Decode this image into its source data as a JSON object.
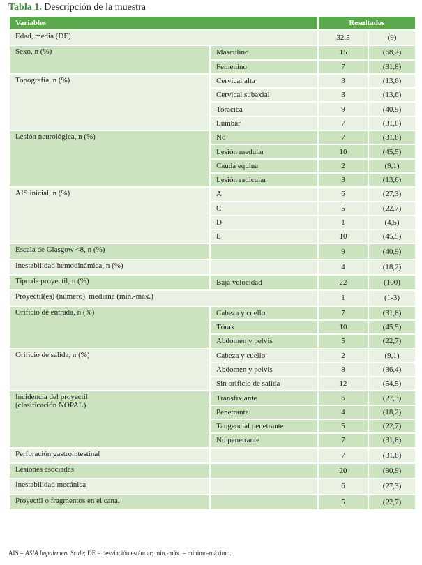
{
  "title": {
    "label": "Tabla 1.",
    "text": " Descripción de la muestra"
  },
  "header": {
    "variables": "Variables",
    "results": "Resultados"
  },
  "groups": [
    {
      "var": "Edad, media (DE)",
      "span": true,
      "rows": [
        [
          "",
          "32.5",
          "(9)"
        ]
      ]
    },
    {
      "var": "Sexo, n (%)",
      "rows": [
        [
          "Masculino",
          "15",
          "(68,2)"
        ],
        [
          "Femenino",
          "7",
          "(31,8)"
        ]
      ]
    },
    {
      "var": "Topografía, n (%)",
      "rows": [
        [
          "Cervical alta",
          "3",
          "(13,6)"
        ],
        [
          "Cervical subaxial",
          "3",
          "(13,6)"
        ],
        [
          "Torácica",
          "9",
          "(40,9)"
        ],
        [
          "Lumbar",
          "7",
          "(31,8)"
        ]
      ]
    },
    {
      "var": "Lesión neurológica, n (%)",
      "rows": [
        [
          "No",
          "7",
          "(31,8)"
        ],
        [
          "Lesión medular",
          "10",
          "(45,5)"
        ],
        [
          "Cauda equina",
          "2",
          "(9,1)"
        ],
        [
          "Lesión radicular",
          "3",
          "(13,6)"
        ]
      ]
    },
    {
      "var": "AIS inicial, n (%)",
      "rows": [
        [
          "A",
          "6",
          "(27,3)"
        ],
        [
          "C",
          "5",
          "(22,7)"
        ],
        [
          "D",
          "1",
          "(4,5)"
        ],
        [
          "E",
          "10",
          "(45,5)"
        ]
      ]
    },
    {
      "var": "Escala de Glasgow <8, n (%)",
      "rows": [
        [
          "",
          "9",
          "(40,9)"
        ]
      ]
    },
    {
      "var": "Inestabilidad hemodinámica, n (%)",
      "rows": [
        [
          "",
          "4",
          "(18,2)"
        ]
      ]
    },
    {
      "var": "Tipo de proyectil, n (%)",
      "rows": [
        [
          "Baja velocidad",
          "22",
          "(100)"
        ]
      ]
    },
    {
      "var": "Proyectil(es) (número), mediana (mín.-máx.)",
      "span": true,
      "rows": [
        [
          "",
          "1",
          "(1-3)"
        ]
      ]
    },
    {
      "var": "Orificio de entrada, n (%)",
      "rows": [
        [
          "Cabeza y cuello",
          "7",
          "(31,8)"
        ],
        [
          "Tórax",
          "10",
          "(45,5)"
        ],
        [
          "Abdomen y pelvis",
          "5",
          "(22,7)"
        ]
      ]
    },
    {
      "var": "Orificio de salida, n (%)",
      "rows": [
        [
          "Cabeza y cuello",
          "2",
          "(9,1)"
        ],
        [
          "Abdomen y pelvis",
          "8",
          "(36,4)"
        ],
        [
          "Sin orificio de salida",
          "12",
          "(54,5)"
        ]
      ]
    },
    {
      "var": "Incidencia del proyectil\n(clasificación NOPAL)",
      "rows": [
        [
          "Transfixiante",
          "6",
          "(27,3)"
        ],
        [
          "Penetrante",
          "4",
          "(18,2)"
        ],
        [
          "Tangencial penetrante",
          "5",
          "(22,7)"
        ],
        [
          "No penetrante",
          "7",
          "(31,8)"
        ]
      ]
    },
    {
      "var": "Perforación gastrointestinal",
      "rows": [
        [
          "",
          "7",
          "(31,8)"
        ]
      ]
    },
    {
      "var": "Lesiones asociadas",
      "rows": [
        [
          "",
          "20",
          "(90,9)"
        ]
      ]
    },
    {
      "var": "Inestabilidad mecánica",
      "rows": [
        [
          "",
          "6",
          "(27,3)"
        ]
      ]
    },
    {
      "var": "Proyectil o fragmentos en el canal",
      "rows": [
        [
          "",
          "5",
          "(22,7)"
        ]
      ]
    }
  ],
  "footnote": {
    "a": "AIS = ",
    "b": "ASIA Impairment Scale",
    "c": "; DE = desviación estándar; mín.-máx. = mínimo-máximo."
  },
  "colors": {
    "header": "#5ba84c",
    "row_light": "#e9f1e3",
    "row_dark": "#cce3c0",
    "title": "#3e8e3a"
  }
}
